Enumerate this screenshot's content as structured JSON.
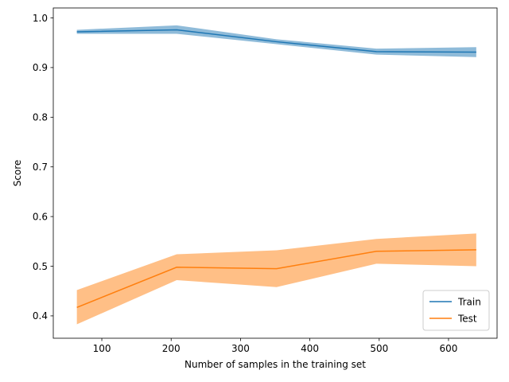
{
  "chart_data": {
    "type": "line",
    "title": "",
    "xlabel": "Number of samples in the training set",
    "ylabel": "Score",
    "xlim": [
      30,
      670
    ],
    "ylim": [
      0.355,
      1.02
    ],
    "xticks": [
      100,
      200,
      300,
      400,
      500,
      600
    ],
    "yticks": [
      0.4,
      0.5,
      0.6,
      0.7,
      0.8,
      0.9,
      1.0
    ],
    "grid": false,
    "legend_position": "lower-right",
    "x": [
      64,
      208,
      352,
      496,
      640
    ],
    "series": [
      {
        "name": "Train",
        "color": "#1f77b4",
        "band_color": "#1f77b4",
        "values": [
          0.972,
          0.976,
          0.952,
          0.932,
          0.931
        ],
        "lower": [
          0.968,
          0.968,
          0.947,
          0.926,
          0.921
        ],
        "upper": [
          0.976,
          0.985,
          0.957,
          0.938,
          0.941
        ]
      },
      {
        "name": "Test",
        "color": "#ff7f0e",
        "band_color": "#ff7f0e",
        "values": [
          0.417,
          0.498,
          0.495,
          0.53,
          0.533
        ],
        "lower": [
          0.383,
          0.472,
          0.458,
          0.505,
          0.5
        ],
        "upper": [
          0.452,
          0.524,
          0.532,
          0.555,
          0.566
        ]
      }
    ]
  }
}
